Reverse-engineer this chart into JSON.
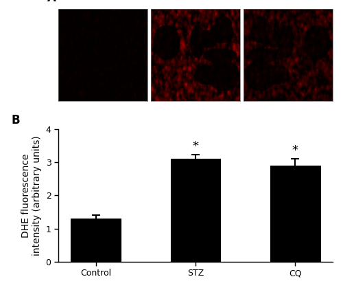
{
  "categories": [
    "Control",
    "STZ",
    "CQ"
  ],
  "values": [
    1.3,
    3.1,
    2.9
  ],
  "errors": [
    0.1,
    0.12,
    0.2
  ],
  "bar_color": "#000000",
  "bar_edge_color": "#000000",
  "ylabel": "DHE fluorescence\nintensity (arbitrary units)",
  "ylim": [
    0,
    4
  ],
  "yticks": [
    0,
    1,
    2,
    3,
    4
  ],
  "significance": [
    false,
    true,
    true
  ],
  "sig_marker": "*",
  "panel_A_label": "A",
  "panel_B_label": "B",
  "background_color": "#ffffff",
  "bar_width": 0.5,
  "errorbar_capsize": 4,
  "errorbar_linewidth": 1.5,
  "label_fontsize": 10,
  "tick_fontsize": 9,
  "panel_label_fontsize": 12,
  "sig_fontsize": 13,
  "img_intensities": [
    0.04,
    0.18,
    0.14
  ],
  "img_dot_sizes": [
    3,
    4,
    4
  ],
  "img_n_dots": [
    300,
    1800,
    1400
  ]
}
